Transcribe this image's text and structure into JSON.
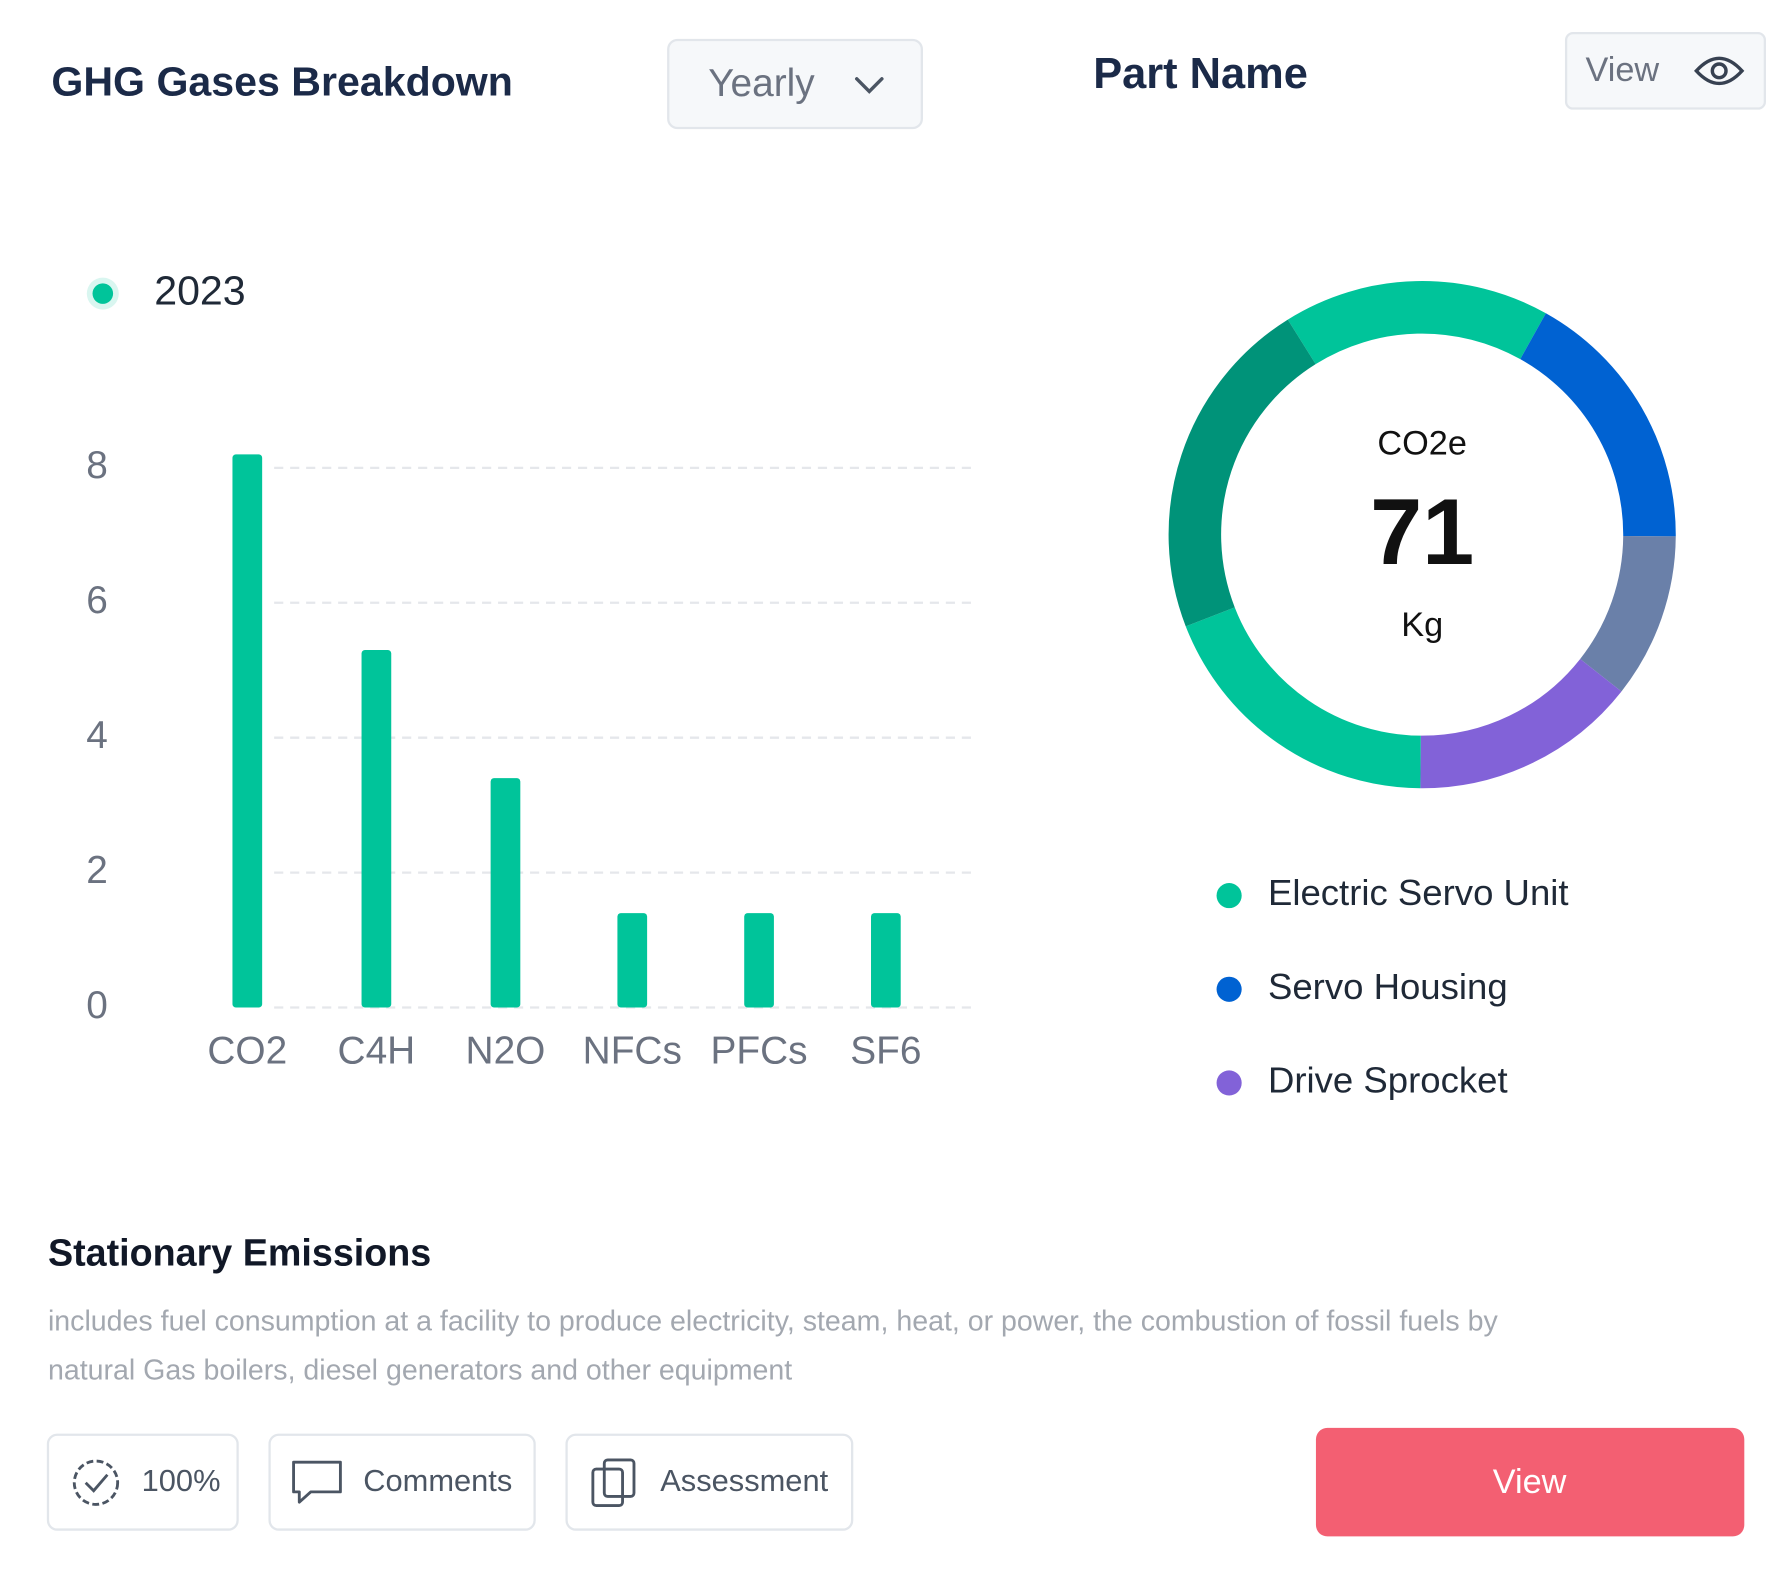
{
  "header": {
    "title": "GHG Gases Breakdown",
    "period": "Yearly",
    "part_title": "Part Name",
    "view_button": "View"
  },
  "chart_data": [
    {
      "type": "bar",
      "categories": [
        "CO2",
        "C4H",
        "N2O",
        "NFCs",
        "PFCs",
        "SF6"
      ],
      "series": [
        {
          "name": "2023",
          "color": "#00c49a",
          "values": [
            8.2,
            5.3,
            3.4,
            1.4,
            1.4,
            1.4
          ]
        }
      ],
      "ylim": [
        0,
        8.5
      ],
      "yticks": [
        0,
        2,
        4,
        6,
        8
      ],
      "grid": true
    },
    {
      "type": "donut",
      "categories": [
        "Electric Servo Unit",
        "Servo Housing",
        null,
        "Drive Sprocket",
        null,
        null
      ],
      "values": [
        17,
        17,
        10.5,
        14.5,
        19,
        22
      ],
      "colors": [
        "#00c49a",
        "#0062d2",
        "#6a80a9",
        "#8262d8",
        "#00c49a",
        "#009379"
      ],
      "center_label": "CO2e",
      "total": 71,
      "unit": "Kg"
    }
  ],
  "section": {
    "title": "Stationary Emissions",
    "description": [
      "includes fuel consumption at a facility to produce electricity, steam, heat, or power, the combustion of fossil fuels by",
      "natural Gas boilers, diesel generators and other equipment"
    ],
    "buttons": [
      "100%",
      "Comments",
      "Assessment"
    ],
    "action": "View"
  }
}
